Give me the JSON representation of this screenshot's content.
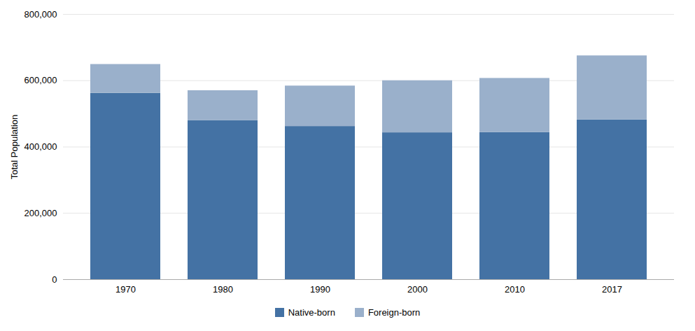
{
  "chart_data": {
    "type": "bar",
    "stacked": true,
    "categories": [
      "1970",
      "1980",
      "1990",
      "2000",
      "2010",
      "2017"
    ],
    "series": [
      {
        "name": "Native-born",
        "color": "#4472a4",
        "values": [
          562000,
          480000,
          462000,
          443000,
          444000,
          482000
        ]
      },
      {
        "name": "Foreign-born",
        "color": "#9ab0cb",
        "values": [
          87000,
          90000,
          122000,
          157000,
          163000,
          193000
        ]
      }
    ],
    "ylabel": "Total Population",
    "ylim": [
      0,
      800000
    ],
    "yticks": [
      0,
      {
        "value": 200000,
        "label": "200,000"
      },
      {
        "value": 400000,
        "label": "400,000"
      },
      {
        "value": 600000,
        "label": "600,000"
      },
      {
        "value": 800000,
        "label": "800,000"
      }
    ],
    "grid": true,
    "legend": "bottom"
  }
}
